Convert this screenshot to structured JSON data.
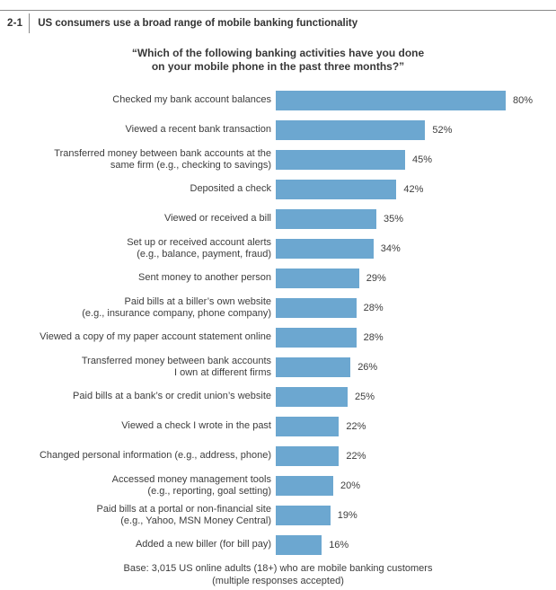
{
  "figure": {
    "number": "2-1",
    "title": "US consumers use a broad range of mobile banking functionality"
  },
  "chart_data": {
    "type": "bar",
    "orientation": "horizontal",
    "title": "“Which of the following banking activities have you done on your mobile phone in the past three months?”",
    "title_lines": [
      "“Which of the following banking activities have you done",
      "on your mobile phone in the past three months?”"
    ],
    "categories": [
      "Checked my bank account balances",
      "Viewed a recent bank transaction",
      "Transferred money between bank accounts at the\nsame firm (e.g., checking to savings)",
      "Deposited a check",
      "Viewed or received a bill",
      "Set up or received account alerts\n(e.g., balance, payment, fraud)",
      "Sent money to another person",
      "Paid bills at a biller’s own website\n(e.g., insurance company, phone company)",
      "Viewed a copy of my paper account statement online",
      "Transferred money between bank accounts\nI own at different firms",
      "Paid bills at a bank’s or credit union’s website",
      "Viewed a check I wrote in the past",
      "Changed personal information (e.g., address, phone)",
      "Accessed money management tools\n(e.g., reporting, goal setting)",
      "Paid bills at a portal or non-financial site\n(e.g., Yahoo, MSN Money Central)",
      "Added a new biller (for bill pay)"
    ],
    "values": [
      80,
      52,
      45,
      42,
      35,
      34,
      29,
      28,
      28,
      26,
      25,
      22,
      22,
      20,
      19,
      16
    ],
    "unit": "%",
    "xlim": [
      0,
      100
    ],
    "grid": false,
    "legend": "none",
    "value_labels_shown": true,
    "bar_color": "#6CA7D0"
  },
  "footnote_lines": [
    "Base: 3,015 US online adults (18+) who are mobile banking customers",
    "(multiple responses accepted)"
  ],
  "colors": {
    "bar": "#6CA7D0",
    "text": "#3d3d3d",
    "rule": "#8a8a8a"
  }
}
